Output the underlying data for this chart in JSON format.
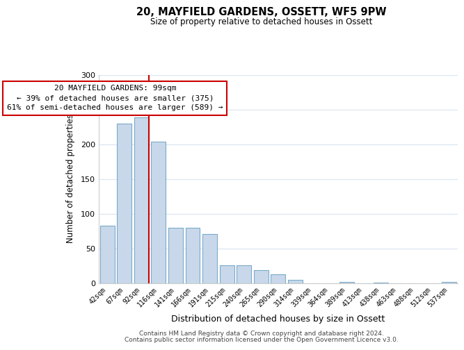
{
  "title": "20, MAYFIELD GARDENS, OSSETT, WF5 9PW",
  "subtitle": "Size of property relative to detached houses in Ossett",
  "xlabel": "Distribution of detached houses by size in Ossett",
  "ylabel": "Number of detached properties",
  "bar_labels": [
    "42sqm",
    "67sqm",
    "92sqm",
    "116sqm",
    "141sqm",
    "166sqm",
    "191sqm",
    "215sqm",
    "240sqm",
    "265sqm",
    "290sqm",
    "314sqm",
    "339sqm",
    "364sqm",
    "389sqm",
    "413sqm",
    "438sqm",
    "463sqm",
    "488sqm",
    "512sqm",
    "537sqm"
  ],
  "bar_heights": [
    83,
    230,
    239,
    204,
    80,
    80,
    71,
    26,
    26,
    19,
    13,
    5,
    0,
    0,
    2,
    0,
    1,
    0,
    0,
    0,
    2
  ],
  "bar_color": "#c8d8ea",
  "bar_edge_color": "#7aaaca",
  "vline_color": "#cc0000",
  "annotation_title": "20 MAYFIELD GARDENS: 99sqm",
  "annotation_line1": "← 39% of detached houses are smaller (375)",
  "annotation_line2": "61% of semi-detached houses are larger (589) →",
  "annotation_box_color": "#ffffff",
  "annotation_box_edge": "#cc0000",
  "ylim": [
    0,
    300
  ],
  "yticks": [
    0,
    50,
    100,
    150,
    200,
    250,
    300
  ],
  "footer1": "Contains HM Land Registry data © Crown copyright and database right 2024.",
  "footer2": "Contains public sector information licensed under the Open Government Licence v3.0.",
  "background_color": "#ffffff",
  "grid_color": "#d8e4f0"
}
